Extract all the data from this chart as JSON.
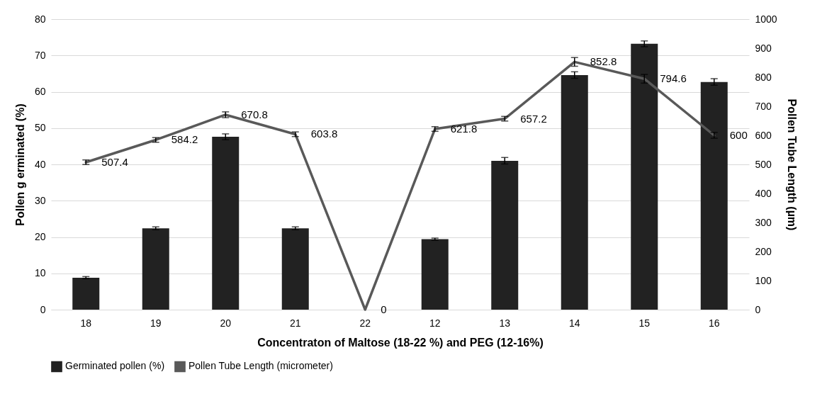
{
  "chart_data": {
    "type": "bar",
    "xlabel": "Concentraton of Maltose (18-22 %) and PEG (12-16%)",
    "ylabel": "Pollen g erminated (%)",
    "y2label": "Pollen Tube Length (µm)",
    "categories": [
      "18",
      "19",
      "20",
      "21",
      "22",
      "12",
      "13",
      "14",
      "15",
      "16"
    ],
    "series": [
      {
        "name": "Germinated pollen (%)",
        "color": "#222222",
        "values": [
          8.8,
          22.4,
          47.6,
          22.4,
          0,
          19.4,
          41,
          64.6,
          73.2,
          62.7
        ],
        "errors": [
          0.3,
          0.4,
          0.8,
          0.4,
          null,
          0.3,
          0.9,
          0.9,
          0.8,
          0.9
        ]
      },
      {
        "name": "Pollen Tube Length (micrometer)",
        "type": "line",
        "axis": "y2",
        "color": "#595959",
        "values": [
          507.4,
          584.2,
          670.8,
          603.8,
          0,
          621.8,
          657.2,
          852.8,
          794.6,
          600
        ],
        "errors": [
          8,
          8,
          10,
          8,
          null,
          8,
          8,
          15,
          15,
          10
        ],
        "value_labels": [
          "507.4",
          "584.2",
          "670.8",
          "603.8",
          "0",
          "621.8",
          "657.2",
          "852.8",
          "794.6",
          "600"
        ]
      }
    ],
    "ylim": [
      0,
      80
    ],
    "yticks": [
      0,
      10,
      20,
      30,
      40,
      50,
      60,
      70,
      80
    ],
    "y2lim": [
      0,
      1000
    ],
    "y2ticks": [
      0,
      100,
      200,
      300,
      400,
      500,
      600,
      700,
      800,
      900,
      1000
    ],
    "grid": "y",
    "legend": "bottom"
  }
}
